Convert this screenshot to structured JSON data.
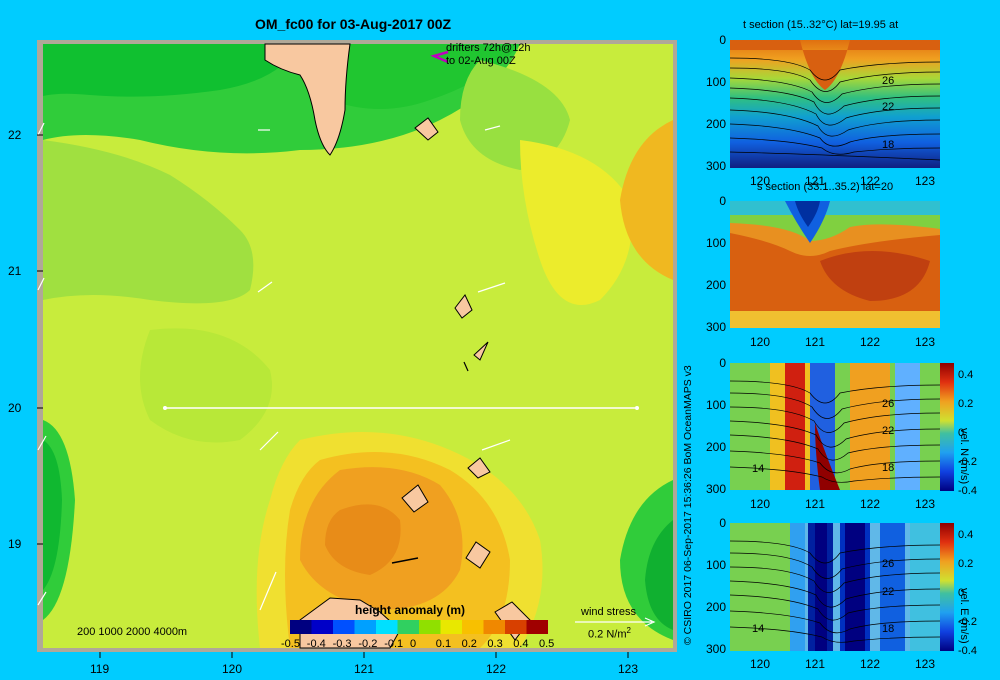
{
  "main_map": {
    "title": "OM_fc00 for 03-Aug-2017 00Z",
    "drifters_line1": "drifters 72h@12h",
    "drifters_line2": "to 02-Aug 00Z",
    "lat_ticks": [
      "22",
      "21",
      "20",
      "19"
    ],
    "lon_ticks": [
      "119",
      "120",
      "121",
      "122",
      "123"
    ],
    "depth_legend": "200  1000  2000  4000m",
    "wind_stress_label": "wind stress",
    "wind_stress_value": "0.2 N/m",
    "wind_stress_sup": "2",
    "colorbar": {
      "title": "height anomaly (m)",
      "labels": [
        "-0.5",
        "-0.4",
        "-0.3",
        "-0.2",
        "-0.1",
        "0",
        "0.1",
        "0.2",
        "0.3",
        "0.4",
        "0.5"
      ],
      "colors": [
        "#000080",
        "#0000c8",
        "#0050ff",
        "#00a0ff",
        "#00e0ff",
        "#30d060",
        "#90e000",
        "#e8e800",
        "#f8c000",
        "#f08800",
        "#d84000",
        "#a00000"
      ]
    }
  },
  "sections": [
    {
      "id": "t",
      "title": "t section (15..32°C) lat=19.95 at",
      "y_ticks": [
        "0",
        "100",
        "200",
        "300"
      ],
      "x_ticks": [
        "120",
        "121",
        "122",
        "123"
      ],
      "contour_labels": [
        "26",
        "22",
        "18"
      ],
      "colorbar": null
    },
    {
      "id": "s",
      "title": "s section (33.1..35.2) lat=20",
      "y_ticks": [
        "0",
        "100",
        "200",
        "300"
      ],
      "x_ticks": [
        "120",
        "121",
        "122",
        "123"
      ],
      "contour_labels": [],
      "colorbar": null
    },
    {
      "id": "vn",
      "title": "",
      "y_ticks": [
        "0",
        "100",
        "200",
        "300"
      ],
      "x_ticks": [
        "120",
        "121",
        "122",
        "123"
      ],
      "contour_labels": [
        "26",
        "22",
        "18",
        "14"
      ],
      "colorbar": {
        "label": "vel. N (m/s)",
        "ticks": [
          "0.4",
          "0.2",
          "0",
          "-0.2",
          "-0.4"
        ]
      }
    },
    {
      "id": "ve",
      "title": "",
      "y_ticks": [
        "0",
        "100",
        "200",
        "300"
      ],
      "x_ticks": [
        "120",
        "121",
        "122",
        "123"
      ],
      "contour_labels": [
        "26",
        "22",
        "18",
        "14"
      ],
      "colorbar": {
        "label": "vel. E (m/s)",
        "ticks": [
          "0.4",
          "0.2",
          "0",
          "-0.2",
          "-0.4"
        ]
      }
    }
  ],
  "credit": "© CSIRO 2017   06-Sep-2017 15:36:26 BoM OceanMAPS v3"
}
